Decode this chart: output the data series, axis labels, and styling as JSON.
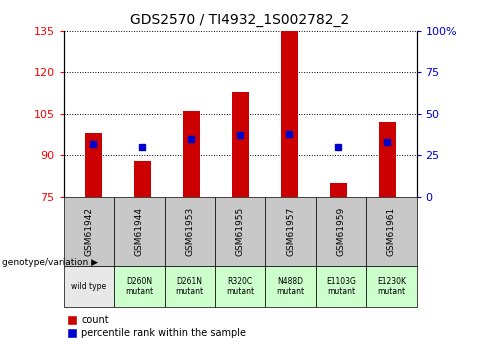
{
  "title": "GDS2570 / TI4932_1S002782_2",
  "samples": [
    "GSM61942",
    "GSM61944",
    "GSM61953",
    "GSM61955",
    "GSM61957",
    "GSM61959",
    "GSM61961"
  ],
  "genotypes": [
    "wild type",
    "D260N\nmutant",
    "D261N\nmutant",
    "R320C\nmutant",
    "N488D\nmutant",
    "E1103G\nmutant",
    "E1230K\nmutant"
  ],
  "counts": [
    98,
    88,
    106,
    113,
    135,
    80,
    102
  ],
  "percentile_ranks": [
    32,
    30,
    35,
    37,
    38,
    30,
    33
  ],
  "baseline": 75,
  "ylim_left": [
    75,
    135
  ],
  "yticks_left": [
    75,
    90,
    105,
    120,
    135
  ],
  "ylim_right": [
    0,
    100
  ],
  "yticks_right": [
    0,
    25,
    50,
    75,
    100
  ],
  "bar_color": "#cc0000",
  "blue_color": "#0000cc",
  "bar_width": 0.35,
  "genotype_bg_colors": [
    "#e8e8e8",
    "#ccffcc",
    "#ccffcc",
    "#ccffcc",
    "#ccffcc",
    "#ccffcc",
    "#ccffcc"
  ],
  "sample_bg_color": "#c8c8c8",
  "legend_count_label": "count",
  "legend_percentile_label": "percentile rank within the sample",
  "genotype_label": "genotype/variation"
}
